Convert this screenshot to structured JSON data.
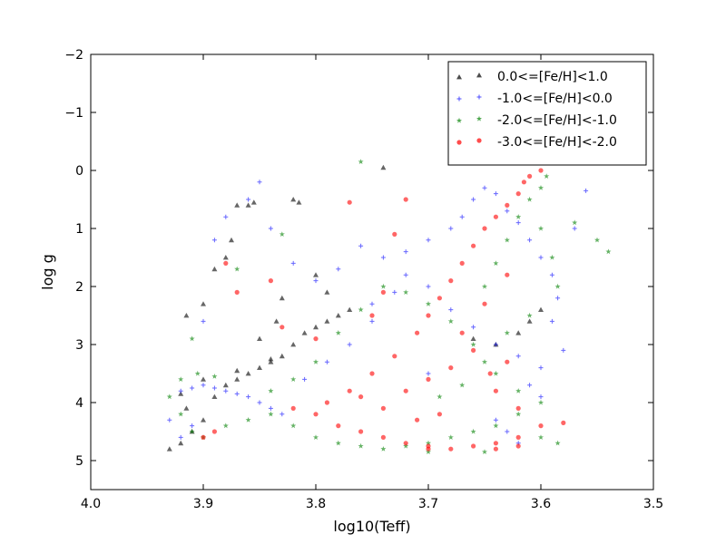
{
  "chart_data": {
    "type": "scatter",
    "xlabel": "log10(Teff)",
    "ylabel": "log g",
    "xlim": [
      4.0,
      3.5
    ],
    "ylim": [
      5.5,
      -2
    ],
    "x_ticks": [
      "4.0",
      "3.9",
      "3.8",
      "3.7",
      "3.6",
      "3.5"
    ],
    "x_tick_values": [
      4.0,
      3.9,
      3.8,
      3.7,
      3.6,
      3.5
    ],
    "y_ticks": [
      "−2",
      "−1",
      "0",
      "1",
      "2",
      "3",
      "4",
      "5"
    ],
    "y_tick_values": [
      -2,
      -1,
      0,
      1,
      2,
      3,
      4,
      5
    ],
    "grid": false,
    "legend_position": "top-right",
    "series": [
      {
        "name": "0.0<=[Fe/H]<1.0",
        "marker": "triangle",
        "color": "#000000",
        "values": [
          [
            3.93,
            4.8
          ],
          [
            3.92,
            4.7
          ],
          [
            3.91,
            4.5
          ],
          [
            3.9,
            4.3
          ],
          [
            3.89,
            3.9
          ],
          [
            3.88,
            3.7
          ],
          [
            3.87,
            3.6
          ],
          [
            3.86,
            3.5
          ],
          [
            3.85,
            3.4
          ],
          [
            3.84,
            3.3
          ],
          [
            3.83,
            3.2
          ],
          [
            3.82,
            3.0
          ],
          [
            3.81,
            2.8
          ],
          [
            3.8,
            2.7
          ],
          [
            3.79,
            2.6
          ],
          [
            3.78,
            2.5
          ],
          [
            3.915,
            2.5
          ],
          [
            3.9,
            2.3
          ],
          [
            3.89,
            1.7
          ],
          [
            3.88,
            1.5
          ],
          [
            3.86,
            0.6
          ],
          [
            3.855,
            0.55
          ],
          [
            3.87,
            0.6
          ],
          [
            3.875,
            1.2
          ],
          [
            3.82,
            0.5
          ],
          [
            3.815,
            0.55
          ],
          [
            3.8,
            1.8
          ],
          [
            3.79,
            2.1
          ],
          [
            3.77,
            2.4
          ],
          [
            3.74,
            -0.05
          ],
          [
            3.66,
            2.9
          ],
          [
            3.64,
            3.0
          ],
          [
            3.62,
            2.8
          ],
          [
            3.6,
            2.4
          ],
          [
            3.61,
            2.6
          ],
          [
            3.84,
            3.25
          ],
          [
            3.87,
            3.45
          ],
          [
            3.9,
            3.6
          ],
          [
            3.85,
            2.9
          ],
          [
            3.835,
            2.6
          ],
          [
            3.83,
            2.2
          ],
          [
            3.92,
            3.85
          ],
          [
            3.915,
            4.1
          ]
        ]
      },
      {
        "name": "-1.0<=[Fe/H]<0.0",
        "marker": "plus",
        "color": "#0000ff",
        "values": [
          [
            3.92,
            3.8
          ],
          [
            3.91,
            3.75
          ],
          [
            3.9,
            3.7
          ],
          [
            3.89,
            3.75
          ],
          [
            3.88,
            3.8
          ],
          [
            3.87,
            3.85
          ],
          [
            3.86,
            3.9
          ],
          [
            3.85,
            4.0
          ],
          [
            3.84,
            4.1
          ],
          [
            3.83,
            4.2
          ],
          [
            3.93,
            4.3
          ],
          [
            3.92,
            4.6
          ],
          [
            3.91,
            4.4
          ],
          [
            3.9,
            2.6
          ],
          [
            3.89,
            1.2
          ],
          [
            3.88,
            0.8
          ],
          [
            3.86,
            0.5
          ],
          [
            3.85,
            0.2
          ],
          [
            3.84,
            1.0
          ],
          [
            3.82,
            1.6
          ],
          [
            3.8,
            1.9
          ],
          [
            3.78,
            1.7
          ],
          [
            3.76,
            1.3
          ],
          [
            3.74,
            1.5
          ],
          [
            3.72,
            1.8
          ],
          [
            3.7,
            2.0
          ],
          [
            3.68,
            2.4
          ],
          [
            3.66,
            2.7
          ],
          [
            3.64,
            3.0
          ],
          [
            3.62,
            3.2
          ],
          [
            3.6,
            3.4
          ],
          [
            3.59,
            2.6
          ],
          [
            3.585,
            2.2
          ],
          [
            3.59,
            1.8
          ],
          [
            3.6,
            1.5
          ],
          [
            3.61,
            1.2
          ],
          [
            3.62,
            0.9
          ],
          [
            3.63,
            0.7
          ],
          [
            3.64,
            0.4
          ],
          [
            3.65,
            0.3
          ],
          [
            3.66,
            0.5
          ],
          [
            3.67,
            0.8
          ],
          [
            3.68,
            1.0
          ],
          [
            3.7,
            1.2
          ],
          [
            3.72,
            1.4
          ],
          [
            3.73,
            2.1
          ],
          [
            3.75,
            2.6
          ],
          [
            3.77,
            3.0
          ],
          [
            3.79,
            3.3
          ],
          [
            3.81,
            3.6
          ],
          [
            3.61,
            3.7
          ],
          [
            3.6,
            3.9
          ],
          [
            3.58,
            3.1
          ],
          [
            3.56,
            0.35
          ],
          [
            3.57,
            1.0
          ],
          [
            3.63,
            4.5
          ],
          [
            3.62,
            4.7
          ],
          [
            3.64,
            4.3
          ],
          [
            3.7,
            3.5
          ],
          [
            3.75,
            2.3
          ]
        ]
      },
      {
        "name": "-2.0<=[Fe/H]<-1.0",
        "marker": "star",
        "color": "#008000",
        "values": [
          [
            3.93,
            3.9
          ],
          [
            3.92,
            4.2
          ],
          [
            3.91,
            4.5
          ],
          [
            3.9,
            4.6
          ],
          [
            3.88,
            4.4
          ],
          [
            3.86,
            4.3
          ],
          [
            3.84,
            4.2
          ],
          [
            3.82,
            4.4
          ],
          [
            3.8,
            4.6
          ],
          [
            3.78,
            4.7
          ],
          [
            3.76,
            4.75
          ],
          [
            3.74,
            4.8
          ],
          [
            3.72,
            4.75
          ],
          [
            3.7,
            4.7
          ],
          [
            3.68,
            4.6
          ],
          [
            3.66,
            4.5
          ],
          [
            3.64,
            4.4
          ],
          [
            3.62,
            4.2
          ],
          [
            3.6,
            4.6
          ],
          [
            3.585,
            4.7
          ],
          [
            3.6,
            4.0
          ],
          [
            3.62,
            3.8
          ],
          [
            3.64,
            3.5
          ],
          [
            3.66,
            3.0
          ],
          [
            3.68,
            2.6
          ],
          [
            3.7,
            2.3
          ],
          [
            3.72,
            2.1
          ],
          [
            3.74,
            2.0
          ],
          [
            3.76,
            2.4
          ],
          [
            3.78,
            2.8
          ],
          [
            3.8,
            3.3
          ],
          [
            3.82,
            3.6
          ],
          [
            3.84,
            3.8
          ],
          [
            3.65,
            2.0
          ],
          [
            3.64,
            1.6
          ],
          [
            3.63,
            1.2
          ],
          [
            3.62,
            0.8
          ],
          [
            3.61,
            0.5
          ],
          [
            3.6,
            0.3
          ],
          [
            3.595,
            0.1
          ],
          [
            3.6,
            1.0
          ],
          [
            3.59,
            1.5
          ],
          [
            3.585,
            2.0
          ],
          [
            3.61,
            2.5
          ],
          [
            3.63,
            2.8
          ],
          [
            3.65,
            3.3
          ],
          [
            3.67,
            3.7
          ],
          [
            3.69,
            3.9
          ],
          [
            3.76,
            -0.15
          ],
          [
            3.55,
            1.2
          ],
          [
            3.54,
            1.4
          ],
          [
            3.57,
            0.9
          ],
          [
            3.92,
            3.6
          ],
          [
            3.905,
            3.5
          ],
          [
            3.89,
            3.55
          ],
          [
            3.87,
            1.7
          ],
          [
            3.83,
            1.1
          ],
          [
            3.91,
            2.9
          ],
          [
            3.7,
            4.85
          ],
          [
            3.65,
            4.85
          ]
        ]
      },
      {
        "name": "-3.0<=[Fe/H]<-2.0",
        "marker": "circle",
        "color": "#ff0000",
        "values": [
          [
            3.8,
            4.2
          ],
          [
            3.78,
            4.4
          ],
          [
            3.76,
            4.5
          ],
          [
            3.74,
            4.6
          ],
          [
            3.72,
            4.7
          ],
          [
            3.7,
            4.75
          ],
          [
            3.68,
            4.8
          ],
          [
            3.66,
            4.75
          ],
          [
            3.64,
            4.7
          ],
          [
            3.62,
            4.6
          ],
          [
            3.82,
            4.1
          ],
          [
            3.79,
            4.0
          ],
          [
            3.77,
            3.8
          ],
          [
            3.75,
            3.5
          ],
          [
            3.73,
            3.2
          ],
          [
            3.71,
            2.8
          ],
          [
            3.7,
            2.5
          ],
          [
            3.69,
            2.2
          ],
          [
            3.68,
            1.9
          ],
          [
            3.67,
            1.6
          ],
          [
            3.66,
            1.3
          ],
          [
            3.65,
            1.0
          ],
          [
            3.64,
            0.8
          ],
          [
            3.63,
            0.6
          ],
          [
            3.62,
            0.4
          ],
          [
            3.615,
            0.2
          ],
          [
            3.61,
            0.1
          ],
          [
            3.6,
            0.0
          ],
          [
            3.72,
            3.8
          ],
          [
            3.7,
            3.6
          ],
          [
            3.68,
            3.4
          ],
          [
            3.66,
            3.1
          ],
          [
            3.64,
            3.8
          ],
          [
            3.62,
            4.1
          ],
          [
            3.69,
            4.2
          ],
          [
            3.71,
            4.3
          ],
          [
            3.74,
            4.1
          ],
          [
            3.76,
            3.9
          ],
          [
            3.67,
            2.8
          ],
          [
            3.65,
            2.3
          ],
          [
            3.63,
            1.8
          ],
          [
            3.74,
            2.1
          ],
          [
            3.75,
            2.5
          ],
          [
            3.73,
            1.1
          ],
          [
            3.72,
            0.5
          ],
          [
            3.77,
            0.55
          ],
          [
            3.84,
            1.9
          ],
          [
            3.83,
            2.7
          ],
          [
            3.8,
            2.9
          ],
          [
            3.88,
            1.6
          ],
          [
            3.87,
            2.1
          ],
          [
            3.89,
            4.5
          ],
          [
            3.9,
            4.6
          ],
          [
            3.58,
            4.35
          ],
          [
            3.6,
            4.4
          ],
          [
            3.62,
            4.75
          ],
          [
            3.64,
            4.8
          ],
          [
            3.7,
            4.8
          ],
          [
            3.645,
            3.5
          ],
          [
            3.63,
            3.3
          ]
        ]
      }
    ]
  }
}
